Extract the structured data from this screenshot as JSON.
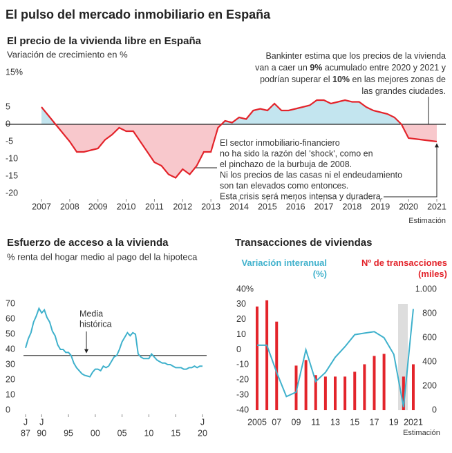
{
  "title": "El pulso del mercado inmobiliario en España",
  "chart_data": [
    {
      "type": "area",
      "title": "El precio de la vivienda libre en España",
      "subtitle": "Variación de crecimiento en %",
      "x": [
        2007,
        2007.5,
        2008,
        2008.25,
        2008.5,
        2008.75,
        2009,
        2009.25,
        2009.5,
        2009.75,
        2010,
        2010.25,
        2010.5,
        2010.75,
        2011,
        2011.25,
        2011.5,
        2011.75,
        2012,
        2012.25,
        2012.5,
        2012.75,
        2013,
        2013.25,
        2013.5,
        2013.75,
        2014,
        2014.25,
        2014.5,
        2014.75,
        2015,
        2015.25,
        2015.5,
        2015.75,
        2016,
        2016.25,
        2016.5,
        2016.75,
        2017,
        2017.25,
        2017.5,
        2017.75,
        2018,
        2018.25,
        2018.5,
        2018.75,
        2019,
        2019.25,
        2019.5,
        2019.75,
        2020,
        2020.5,
        2021
      ],
      "values": [
        5,
        0,
        -5,
        -8,
        -8,
        -7.5,
        -7,
        -4.5,
        -3,
        -1,
        -2,
        -2,
        -5,
        -8,
        -11,
        -12,
        -14.5,
        -15.5,
        -13,
        -14.5,
        -12,
        -8,
        -8,
        -1,
        1,
        0.5,
        2,
        1.5,
        4,
        4.5,
        4,
        6,
        4,
        4,
        4.5,
        5,
        5.5,
        7,
        7,
        6,
        6.5,
        7,
        6.5,
        6.5,
        5,
        4,
        3.5,
        3,
        2,
        0,
        -4,
        -4.5,
        -5
      ],
      "color": "#e3242b",
      "fill_above": "#c3e5ef",
      "fill_below": "#f8c8cc",
      "xlim": [
        2007,
        2021
      ],
      "xticks": [
        2007,
        2008,
        2009,
        2010,
        2011,
        2012,
        2013,
        2014,
        2015,
        2016,
        2017,
        2018,
        2019,
        2020,
        2021
      ],
      "xtick_note": "Estimación",
      "ylim": [
        -20,
        15
      ],
      "yticks": [
        {
          "value": 15,
          "label": "15%"
        },
        5,
        0,
        -5,
        -10,
        -15,
        -20
      ],
      "annotations": [
        {
          "lines": [
            [
              "Bankinter estima que los precios de la vivienda"
            ],
            [
              "van a caer un ",
              "9%",
              " acumulado entre 2020 y 2021 y"
            ],
            [
              "podrían superar el ",
              "10%",
              " en las mejores zonas de"
            ],
            [
              "las grandes ciudades."
            ]
          ]
        },
        {
          "lines": [
            [
              "El sector inmobiliario-financiero"
            ],
            [
              "no ha sido la razón del 'shock', como en"
            ],
            [
              "el pinchazo de la burbuja de 2008."
            ],
            [
              "Ni los precios de las casas ni el endeudamiento"
            ],
            [
              "son tan elevados como entonces."
            ],
            [
              "Esta crisis será menos intensa y duradera."
            ]
          ]
        }
      ]
    },
    {
      "type": "line",
      "title": "Esfuerzo de acceso a la vivienda",
      "subtitle": "% renta del hogar medio al pago del la hipoteca",
      "x": [
        1987,
        1987.5,
        1988,
        1988.5,
        1989,
        1989.5,
        1990,
        1990.5,
        1991,
        1991.5,
        1992,
        1992.5,
        1993,
        1993.5,
        1994,
        1994.5,
        1995,
        1995.5,
        1996,
        1996.5,
        1997,
        1997.5,
        1998,
        1998.5,
        1999,
        1999.5,
        2000,
        2000.5,
        2001,
        2001.5,
        2002,
        2002.5,
        2003,
        2003.5,
        2004,
        2004.5,
        2005,
        2005.5,
        2006,
        2006.5,
        2007,
        2007.5,
        2008,
        2008.5,
        2009,
        2009.5,
        2010,
        2010.5,
        2011,
        2011.5,
        2012,
        2012.5,
        2013,
        2013.5,
        2014,
        2014.5,
        2015,
        2015.5,
        2016,
        2016.5,
        2017,
        2017.5,
        2018,
        2018.5,
        2019,
        2019.5,
        2020
      ],
      "values": [
        41,
        47,
        51,
        58,
        62,
        67,
        64,
        66,
        61,
        58,
        52,
        49,
        43,
        40,
        40,
        38,
        38,
        36,
        31,
        28,
        26,
        24,
        23,
        22.5,
        22,
        25,
        27,
        27,
        26,
        29,
        28,
        29,
        32,
        35,
        36,
        40,
        45,
        48,
        51,
        49,
        51,
        50,
        37,
        35,
        34,
        34,
        34,
        37,
        35,
        33,
        32,
        31,
        31,
        30,
        30,
        29,
        28,
        28,
        28,
        27,
        27,
        28,
        28,
        29,
        28,
        29,
        29
      ],
      "color": "#3fb1cc",
      "reference": {
        "value": 36,
        "label": [
          "Media",
          "histórica"
        ]
      },
      "xlim": [
        1987,
        2020
      ],
      "xticks": [
        {
          "value": 1987,
          "label": "87"
        },
        {
          "value": 1990,
          "label": "90"
        },
        {
          "value": 1995,
          "label": "95"
        },
        {
          "value": 2000,
          "label": "00"
        },
        {
          "value": 2005,
          "label": "05"
        },
        {
          "value": 2010,
          "label": "10"
        },
        {
          "value": 2015,
          "label": "15"
        },
        {
          "value": 2020,
          "label": "20"
        }
      ],
      "xtick_months": [
        {
          "value": 1987,
          "label": "J"
        },
        {
          "value": 1990,
          "label": "J"
        },
        {
          "value": 2020,
          "label": "J"
        }
      ],
      "ylim": [
        0,
        70
      ],
      "yticks": [
        0,
        10,
        20,
        30,
        40,
        50,
        60,
        70
      ]
    },
    {
      "type": "bar",
      "title": "Transacciones de viviendas",
      "series": [
        {
          "name": "Variación interanual (%)",
          "type": "line",
          "color": "#3fb1cc",
          "axis": "y",
          "x": [
            2005,
            2006,
            2007,
            2008,
            2009,
            2010,
            2011,
            2012,
            2013,
            2014,
            2015,
            2016,
            2017,
            2018,
            2019,
            2020,
            2021
          ],
          "values": [
            3,
            3,
            -15,
            -31,
            -28,
            0,
            -21,
            -15,
            -5,
            2,
            10,
            11,
            12,
            8,
            -3,
            -38,
            27
          ]
        },
        {
          "name": "Nº de transacciones (miles)",
          "type": "bar",
          "color": "#e3242b",
          "axis": "y2",
          "x": [
            2005,
            2006,
            2007,
            2009,
            2010,
            2011,
            2012,
            2013,
            2014,
            2015,
            2016,
            2017,
            2018,
            2020,
            2021
          ],
          "values": [
            858,
            909,
            733,
            369,
            415,
            290,
            278,
            278,
            278,
            318,
            380,
            449,
            466,
            278,
            380
          ]
        }
      ],
      "xlim": [
        2005,
        2021
      ],
      "xticks": [
        2005,
        {
          "value": 2007,
          "label": "07"
        },
        {
          "value": 2009,
          "label": "09"
        },
        {
          "value": 2011,
          "label": "11"
        },
        {
          "value": 2013,
          "label": "13"
        },
        {
          "value": 2015,
          "label": "15"
        },
        {
          "value": 2017,
          "label": "17"
        },
        {
          "value": 2019,
          "label": "19"
        },
        2021
      ],
      "xtick_note": "Estimación",
      "ylim": [
        -40,
        40
      ],
      "yticks": [
        {
          "value": 40,
          "label": "40%"
        },
        30,
        20,
        10,
        0,
        -10,
        -20,
        -30,
        -40
      ],
      "y2lim": [
        0,
        1000
      ],
      "y2ticks": [
        {
          "value": 1000,
          "label": "1.000"
        },
        800,
        600,
        400,
        200,
        0
      ]
    }
  ]
}
